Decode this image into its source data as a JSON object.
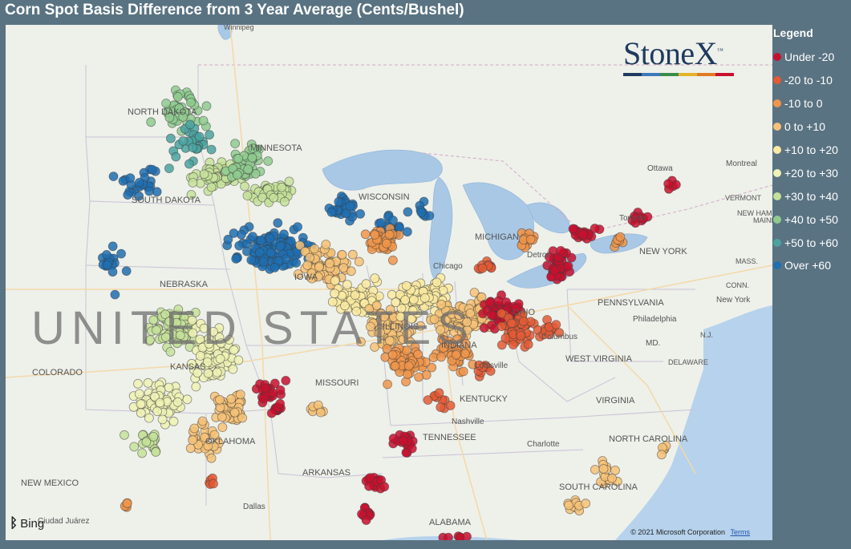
{
  "title": "Corn Spot Basis Difference from 3 Year Average (Cents/Bushel)",
  "legend": {
    "title": "Legend",
    "items": [
      {
        "label": "Under -20",
        "color": "#c8102e"
      },
      {
        "label": "-20 to -10",
        "color": "#e35a35"
      },
      {
        "label": "-10 to 0",
        "color": "#f0954a"
      },
      {
        "label": "0 to +10",
        "color": "#f6c277"
      },
      {
        "label": "+10 to +20",
        "color": "#faeaa0"
      },
      {
        "label": "+20 to +30",
        "color": "#eef2b4"
      },
      {
        "label": "+30 to +40",
        "color": "#c6e29a"
      },
      {
        "label": "+40 to +50",
        "color": "#8fcb8f"
      },
      {
        "label": "+50 to +60",
        "color": "#4aa3a0"
      },
      {
        "label": "Over +60",
        "color": "#1f6fb2"
      }
    ]
  },
  "logo": {
    "text": "StoneX",
    "tm": "™"
  },
  "bing": {
    "text": "Bing"
  },
  "copyright": {
    "text": "© 2021 Microsoft Corporation",
    "terms": "Terms"
  },
  "map_labels": {
    "winnipeg": "Winnipeg",
    "north_dakota": "NORTH DAKOTA",
    "minnesota": "MINNESOTA",
    "south_dakota": "SOUTH DAKOTA",
    "wisconsin": "WISCONSIN",
    "michigan": "MICHIGAN",
    "nebraska": "NEBRASKA",
    "iowa": "IOWA",
    "chicago": "Chicago",
    "detroit": "Detroit",
    "toronto": "Toronto",
    "ottawa": "Ottawa",
    "montreal": "Montreal",
    "vermont": "VERMONT",
    "new_hampshire": "NEW HAMPSHIRE",
    "maine": "MAINE",
    "new_york_state": "NEW YORK",
    "massachusetts": "MASS.",
    "connecticut": "CONN.",
    "new_york_city": "New York",
    "pennsylvania": "PENNSYLVANIA",
    "philadelphia": "Philadelphia",
    "new_jersey": "N.J.",
    "maryland": "MD.",
    "delaware": "DELAWARE",
    "ohio": "OHIO",
    "indiana": "INDIANA",
    "illinois": "ILLINOIS",
    "columbus": "Columbus",
    "west_virginia": "WEST VIRGINIA",
    "virginia": "VIRGINIA",
    "kentucky": "KENTUCKY",
    "louisville": "Louisville",
    "nashville": "Nashville",
    "tennessee": "TENNESSEE",
    "north_carolina": "NORTH CAROLINA",
    "charlotte": "Charlotte",
    "south_carolina": "SOUTH CAROLINA",
    "kansas": "KANSAS",
    "missouri": "MISSOURI",
    "colorado": "COLORADO",
    "oklahoma": "OKLAHOMA",
    "arkansas": "ARKANSAS",
    "new_mexico": "NEW MEXICO",
    "dallas": "Dallas",
    "alabama": "ALABAMA",
    "ciudad_juarez": "Ciudad Juárez",
    "united_states": "UNITED STATES"
  }
}
